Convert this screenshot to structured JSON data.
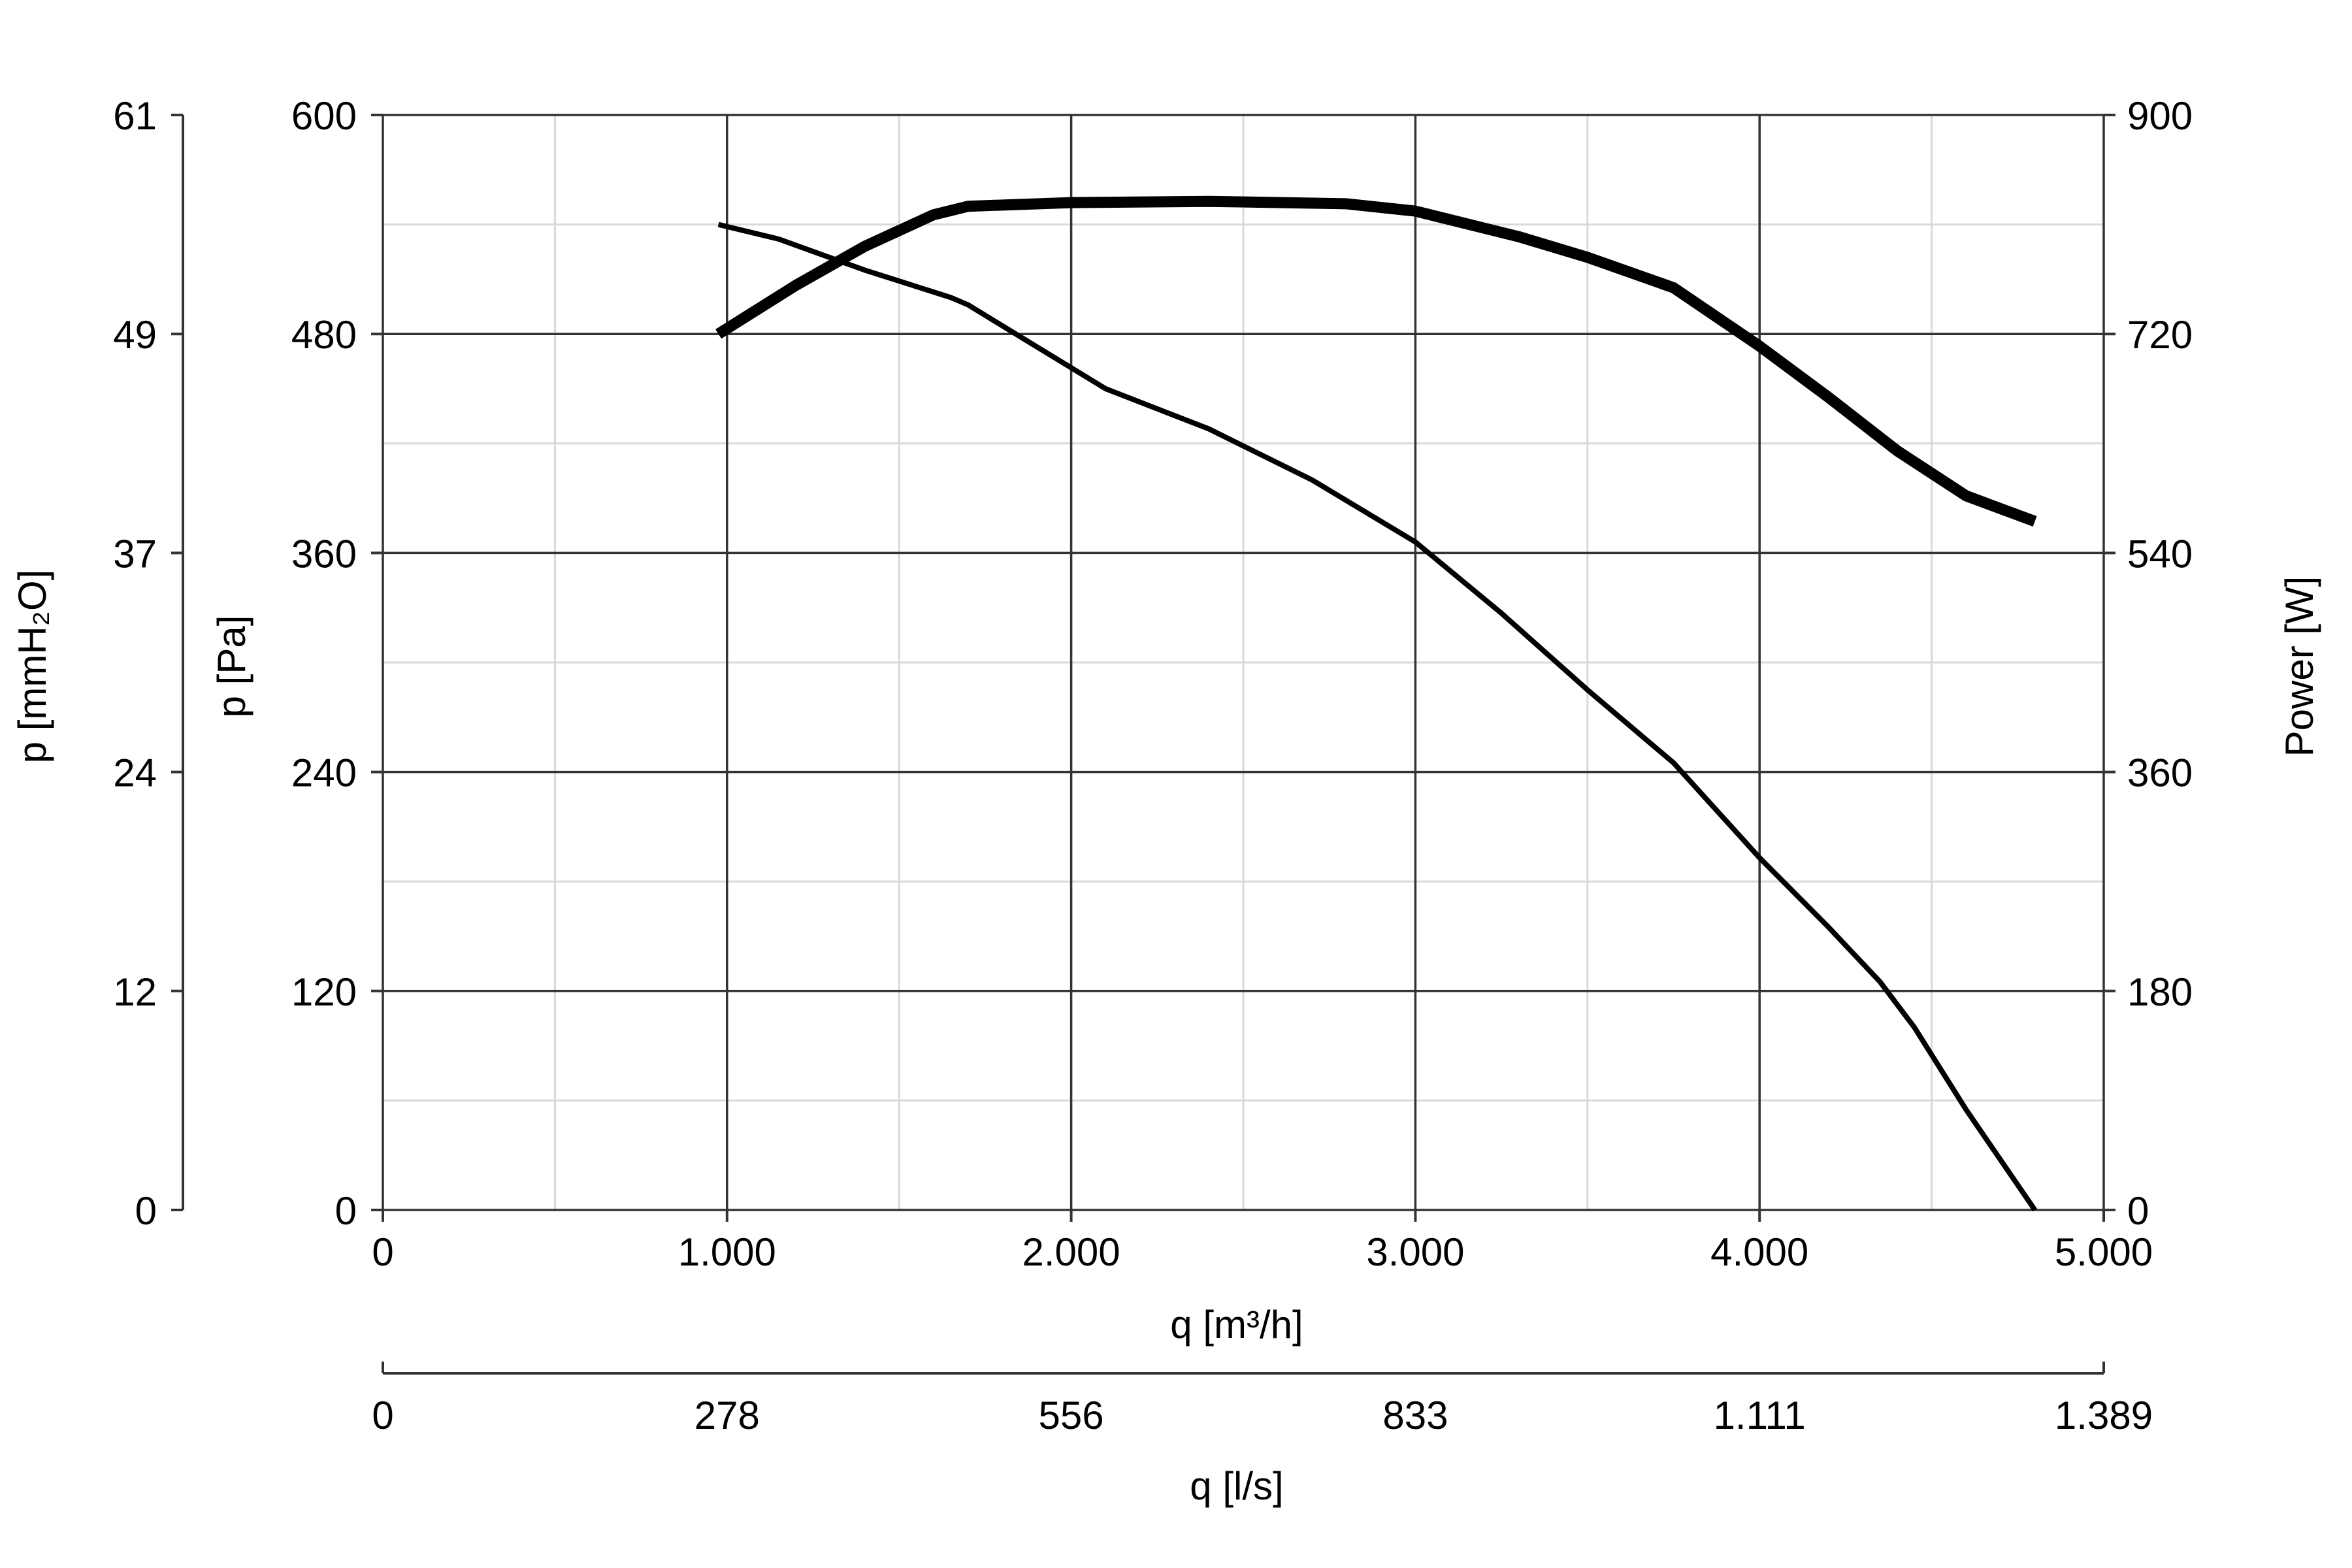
{
  "chart_data": {
    "type": "line",
    "title": "",
    "grid": true,
    "x_axis": {
      "label": "q [m³/h]",
      "range": [
        0,
        5000
      ],
      "ticks": [
        "0",
        "1.000",
        "2.000",
        "3.000",
        "4.000",
        "5.000"
      ]
    },
    "x2_axis": {
      "label": "q [l/s]",
      "range": [
        0,
        1389
      ],
      "ticks": [
        "0",
        "278",
        "556",
        "833",
        "1.111",
        "1.389"
      ]
    },
    "y_axis": {
      "label": "p [Pa]",
      "range": [
        0,
        600
      ],
      "ticks": [
        "0",
        "120",
        "240",
        "360",
        "480",
        "600"
      ]
    },
    "y_axis_outer": {
      "label": "p [mmH₂O]",
      "range": [
        0,
        61
      ],
      "ticks": [
        "0",
        "12",
        "24",
        "37",
        "49",
        "61"
      ]
    },
    "y2_axis": {
      "label": "Power [W]",
      "range": [
        0,
        900
      ],
      "ticks": [
        "0",
        "180",
        "360",
        "540",
        "720",
        "900"
      ]
    },
    "series": [
      {
        "axis": "p [Pa]",
        "stroke": "#000000",
        "points": [
          [
            975,
            540
          ],
          [
            1150,
            532
          ],
          [
            1400,
            515
          ],
          [
            1650,
            500
          ],
          [
            1700,
            496
          ],
          [
            1900,
            473
          ],
          [
            2100,
            450
          ],
          [
            2400,
            428
          ],
          [
            2700,
            400
          ],
          [
            3000,
            366
          ],
          [
            3250,
            327
          ],
          [
            3500,
            285
          ],
          [
            3750,
            245
          ],
          [
            4000,
            193
          ],
          [
            4200,
            155
          ],
          [
            4350,
            125
          ],
          [
            4450,
            100
          ],
          [
            4600,
            55
          ],
          [
            4800,
            0
          ]
        ]
      },
      {
        "axis": "Power [W]",
        "stroke": "#000000",
        "points": [
          [
            975,
            720
          ],
          [
            1200,
            760
          ],
          [
            1400,
            792
          ],
          [
            1600,
            818
          ],
          [
            1700,
            825
          ],
          [
            2000,
            828
          ],
          [
            2400,
            829
          ],
          [
            2800,
            827
          ],
          [
            3000,
            821
          ],
          [
            3300,
            800
          ],
          [
            3500,
            783
          ],
          [
            3750,
            758
          ],
          [
            4000,
            710
          ],
          [
            4200,
            668
          ],
          [
            4400,
            624
          ],
          [
            4600,
            587
          ],
          [
            4800,
            566
          ]
        ]
      }
    ]
  }
}
